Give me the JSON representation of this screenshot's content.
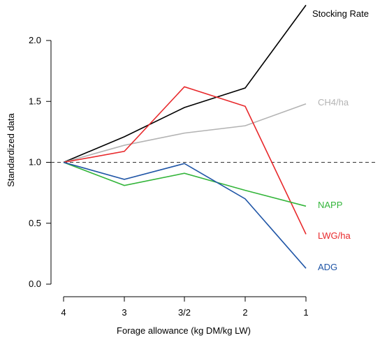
{
  "chart_data": {
    "type": "line",
    "xlabel": "Forage allowance (kg DM/kg LW)",
    "ylabel": "Standardized data",
    "categories": [
      "4",
      "3",
      "3/2",
      "2",
      "1"
    ],
    "ylim": [
      0,
      2.3
    ],
    "yticks": [
      "0.0",
      "0.5",
      "1.0",
      "1.5",
      "2.0"
    ],
    "reference_line": {
      "y": 1.0,
      "style": "dashed"
    },
    "grid": false,
    "legend": "inline labels at right end of each series",
    "series": [
      {
        "name": "Stocking Rate",
        "color": "#000000",
        "values": [
          1.0,
          1.21,
          1.45,
          1.61,
          2.29
        ]
      },
      {
        "name": "CH4/ha",
        "color": "#b3b3b3",
        "values": [
          1.0,
          1.14,
          1.24,
          1.3,
          1.48
        ]
      },
      {
        "name": "LWG/ha",
        "color": "#e8282b",
        "values": [
          1.0,
          1.09,
          1.62,
          1.46,
          0.41
        ]
      },
      {
        "name": "NAPP",
        "color": "#33b53a",
        "values": [
          1.0,
          0.81,
          0.91,
          0.77,
          0.64
        ]
      },
      {
        "name": "ADG",
        "color": "#1f55a6",
        "values": [
          1.0,
          0.86,
          0.99,
          0.7,
          0.13
        ]
      }
    ]
  }
}
